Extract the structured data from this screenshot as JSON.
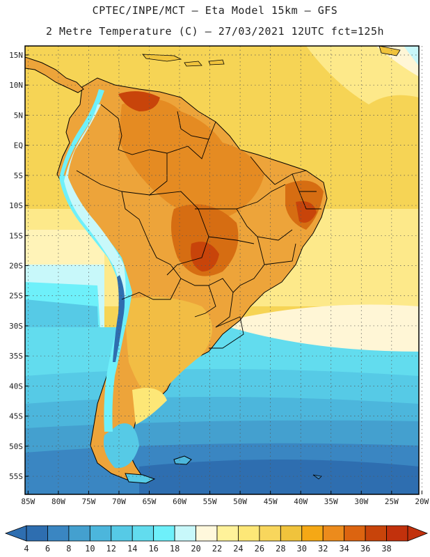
{
  "header": {
    "title": "CPTEC/INPE/MCT –  Eta Model 15km – GFS",
    "subtitle": "2 Metre Temperature (C) – 27/03/2021 12UTC fct=125h"
  },
  "map": {
    "lat_labels": [
      "15N",
      "10N",
      "5N",
      "EQ",
      "5S",
      "10S",
      "15S",
      "20S",
      "25S",
      "30S",
      "35S",
      "40S",
      "45S",
      "50S",
      "55S"
    ],
    "lon_labels": [
      "85W",
      "80W",
      "75W",
      "70W",
      "65W",
      "60W",
      "55W",
      "50W",
      "45W",
      "40W",
      "35W",
      "30W",
      "25W",
      "20W"
    ],
    "lat_range": [
      -58,
      16.5
    ],
    "lon_range": [
      -85.5,
      -20.5
    ],
    "grid": "dotted",
    "region": "South America"
  },
  "colorbar": {
    "values": [
      "4",
      "6",
      "8",
      "10",
      "12",
      "14",
      "16",
      "18",
      "20",
      "22",
      "24",
      "26",
      "28",
      "30",
      "32",
      "34",
      "36",
      "38"
    ],
    "colors": [
      "#2e6eb0",
      "#3a86c2",
      "#44a0cf",
      "#4cb6dc",
      "#56cae6",
      "#62dcee",
      "#6ef0fa",
      "#c8f8fa",
      "#fff8dc",
      "#fff29a",
      "#fde777",
      "#f8d65c",
      "#f0c33c",
      "#f5a815",
      "#ec8b1c",
      "#dc6410",
      "#c8440a",
      "#c2310c"
    ]
  }
}
